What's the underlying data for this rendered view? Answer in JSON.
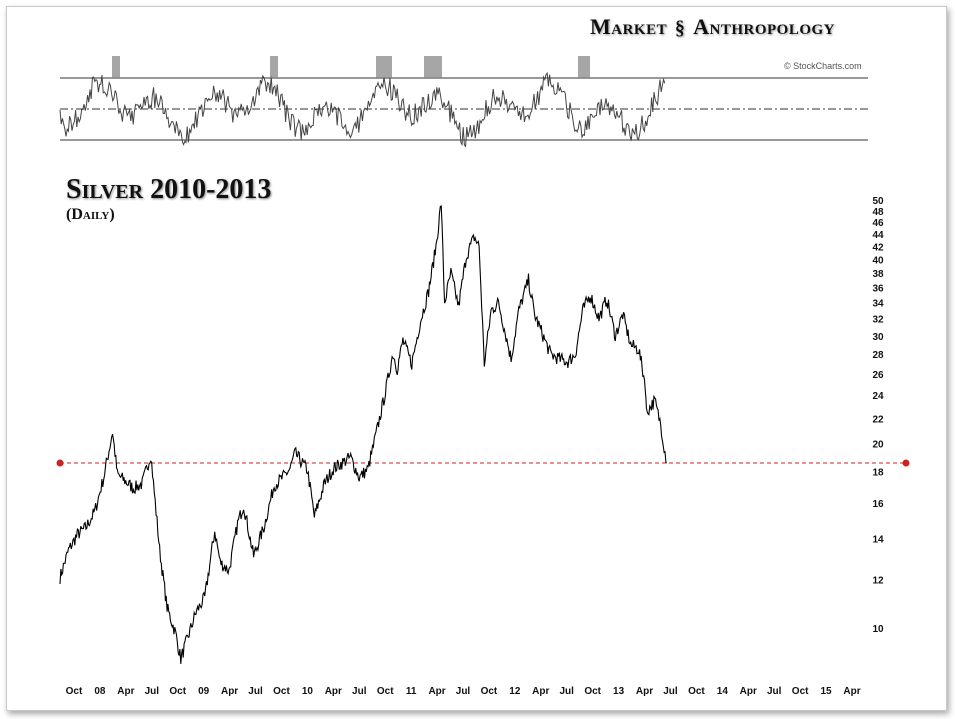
{
  "header": {
    "brand_left": "Market",
    "brand_right": "Anthropology",
    "credit": "© StockCharts.com"
  },
  "chart_data": {
    "type": "line",
    "title": "Silver 2010-2013",
    "subtitle": "(Daily)",
    "y_scale": "log",
    "ylim": [
      9,
      50
    ],
    "yticks": [
      10,
      12,
      14,
      16,
      18,
      20,
      22,
      24,
      26,
      28,
      30,
      32,
      34,
      36,
      38,
      40,
      42,
      44,
      46,
      48,
      50
    ],
    "x_tick_labels": [
      "Oct",
      "08",
      "Apr",
      "Jul",
      "Oct",
      "09",
      "Apr",
      "Jul",
      "Oct",
      "10",
      "Apr",
      "Jul",
      "Oct",
      "11",
      "Apr",
      "Jul",
      "Oct",
      "12",
      "Apr",
      "Jul",
      "Oct",
      "13",
      "Apr",
      "Jul",
      "Oct",
      "14",
      "Apr",
      "Jul",
      "Oct",
      "15",
      "Apr"
    ],
    "x_range": [
      "2007-09",
      "2015-06"
    ],
    "series": [
      {
        "points": [
          [
            "2007-09-01",
            12.1
          ],
          [
            "2007-10-01",
            13.4
          ],
          [
            "2007-11-01",
            14.2
          ],
          [
            "2007-12-01",
            14.6
          ],
          [
            "2008-01-01",
            15.5
          ],
          [
            "2008-02-01",
            17.6
          ],
          [
            "2008-03-03",
            20.9
          ],
          [
            "2008-03-20",
            17.8
          ],
          [
            "2008-04-15",
            17.4
          ],
          [
            "2008-05-15",
            16.9
          ],
          [
            "2008-06-15",
            17.2
          ],
          [
            "2008-07-15",
            19.2
          ],
          [
            "2008-08-15",
            13.4
          ],
          [
            "2008-09-10",
            10.8
          ],
          [
            "2008-10-10",
            9.8
          ],
          [
            "2008-10-28",
            8.9
          ],
          [
            "2008-11-20",
            9.6
          ],
          [
            "2008-12-20",
            10.6
          ],
          [
            "2009-01-20",
            11.2
          ],
          [
            "2009-02-24",
            14.4
          ],
          [
            "2009-03-15",
            12.8
          ],
          [
            "2009-04-15",
            12.4
          ],
          [
            "2009-05-15",
            14.8
          ],
          [
            "2009-06-05",
            15.9
          ],
          [
            "2009-07-10",
            13.1
          ],
          [
            "2009-08-15",
            14.6
          ],
          [
            "2009-09-20",
            17.1
          ],
          [
            "2009-10-20",
            17.6
          ],
          [
            "2009-11-15",
            18.2
          ],
          [
            "2009-12-02",
            19.3
          ],
          [
            "2010-01-15",
            18.1
          ],
          [
            "2010-02-08",
            15.2
          ],
          [
            "2010-03-15",
            17.2
          ],
          [
            "2010-04-15",
            18.2
          ],
          [
            "2010-05-15",
            18.6
          ],
          [
            "2010-06-15",
            19.0
          ],
          [
            "2010-07-15",
            17.6
          ],
          [
            "2010-08-15",
            18.2
          ],
          [
            "2010-09-15",
            21.0
          ],
          [
            "2010-10-15",
            24.3
          ],
          [
            "2010-11-10",
            28.1
          ],
          [
            "2010-11-25",
            26.5
          ],
          [
            "2010-12-15",
            29.5
          ],
          [
            "2011-01-15",
            27.0
          ],
          [
            "2011-02-15",
            31.8
          ],
          [
            "2011-03-15",
            35.5
          ],
          [
            "2011-04-10",
            42.0
          ],
          [
            "2011-04-28",
            49.5
          ],
          [
            "2011-05-10",
            34.0
          ],
          [
            "2011-06-01",
            38.0
          ],
          [
            "2011-06-28",
            33.5
          ],
          [
            "2011-07-25",
            40.5
          ],
          [
            "2011-08-22",
            43.5
          ],
          [
            "2011-09-08",
            42.0
          ],
          [
            "2011-09-26",
            27.0
          ],
          [
            "2011-10-20",
            33.0
          ],
          [
            "2011-11-15",
            34.0
          ],
          [
            "2011-12-29",
            27.5
          ],
          [
            "2012-01-25",
            33.0
          ],
          [
            "2012-02-28",
            37.0
          ],
          [
            "2012-03-20",
            32.5
          ],
          [
            "2012-05-15",
            28.0
          ],
          [
            "2012-06-15",
            27.5
          ],
          [
            "2012-07-15",
            27.2
          ],
          [
            "2012-08-10",
            28.0
          ],
          [
            "2012-09-05",
            33.0
          ],
          [
            "2012-10-01",
            35.0
          ],
          [
            "2012-11-01",
            32.0
          ],
          [
            "2012-11-28",
            34.5
          ],
          [
            "2012-12-28",
            30.0
          ],
          [
            "2013-01-23",
            32.5
          ],
          [
            "2013-02-20",
            29.0
          ],
          [
            "2013-03-20",
            28.5
          ],
          [
            "2013-04-12",
            25.0
          ],
          [
            "2013-04-16",
            22.5
          ],
          [
            "2013-05-15",
            23.5
          ],
          [
            "2013-06-05",
            21.5
          ],
          [
            "2013-06-26",
            18.6
          ]
        ]
      }
    ],
    "reference_line": {
      "value": 18.6,
      "color": "#cc2222",
      "style": "dashed"
    },
    "line_color": "#000000",
    "grid": false
  },
  "indicator": {
    "levels_label": "",
    "line_color": "#444444",
    "fill_color": "#888888"
  }
}
